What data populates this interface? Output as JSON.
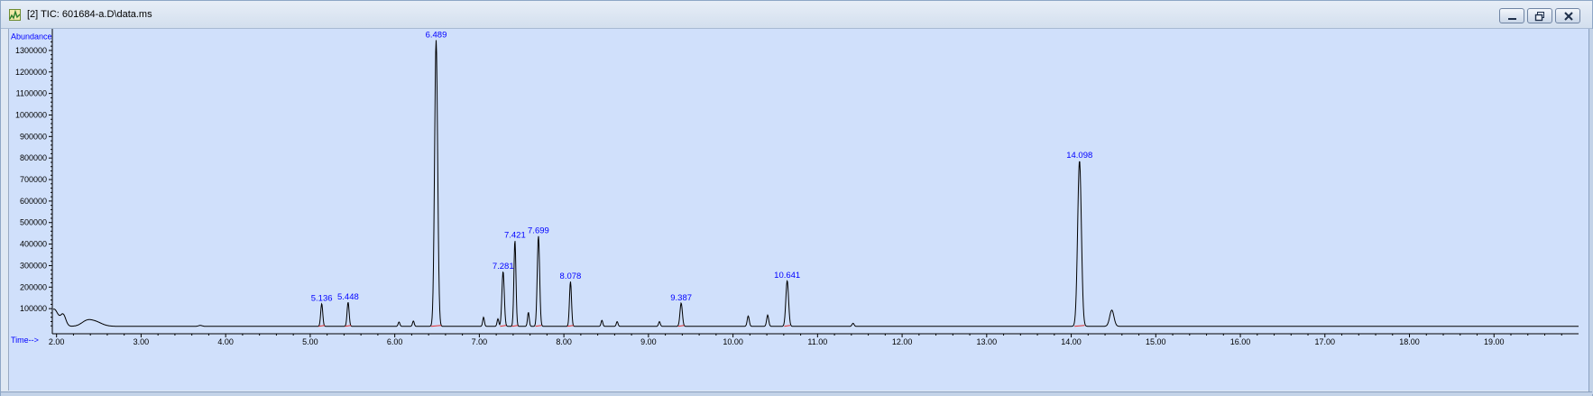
{
  "window": {
    "title": "[2] TIC: 601684-a.D\\data.ms",
    "app_icon": "chromatogram-app-icon",
    "controls": [
      "minimize-icon",
      "restore-icon",
      "close-icon"
    ]
  },
  "colors": {
    "background": "#d0e0fb",
    "trace": "#000000",
    "baseline": "#e03030",
    "label": "#0000ff",
    "axis": "#000000"
  },
  "chart_data": {
    "type": "line",
    "title": "",
    "ylabel": "Abundance",
    "xlabel": "Time-->",
    "xlim": [
      1.95,
      20.0
    ],
    "ylim": [
      0,
      1350000
    ],
    "x_ticks": [
      "2.00",
      "3.00",
      "4.00",
      "5.00",
      "6.00",
      "7.00",
      "8.00",
      "9.00",
      "10.00",
      "11.00",
      "12.00",
      "13.00",
      "14.00",
      "15.00",
      "16.00",
      "17.00",
      "18.00",
      "19.00"
    ],
    "y_ticks": [
      "100000",
      "200000",
      "300000",
      "400000",
      "500000",
      "600000",
      "700000",
      "800000",
      "900000",
      "1000000",
      "1100000",
      "1200000",
      "1300000"
    ],
    "grid": false,
    "baseline_level": 18000,
    "peaks": [
      {
        "rt": 1.97,
        "height": 80000,
        "width": 0.05
      },
      {
        "rt": 2.08,
        "height": 50000,
        "width": 0.03
      },
      {
        "rt": 2.35,
        "height": 18000,
        "width": 0.06
      },
      {
        "rt": 2.45,
        "height": 22000,
        "width": 0.08
      },
      {
        "rt": 3.7,
        "height": 4000,
        "width": 0.02
      },
      {
        "rt": 5.136,
        "height": 105000,
        "width": 0.012
      },
      {
        "rt": 5.448,
        "height": 112000,
        "width": 0.012
      },
      {
        "rt": 6.05,
        "height": 20000,
        "width": 0.01
      },
      {
        "rt": 6.22,
        "height": 25000,
        "width": 0.01
      },
      {
        "rt": 6.489,
        "height": 1330000,
        "width": 0.018
      },
      {
        "rt": 7.05,
        "height": 42000,
        "width": 0.01
      },
      {
        "rt": 7.22,
        "height": 35000,
        "width": 0.01
      },
      {
        "rt": 7.281,
        "height": 255000,
        "width": 0.014
      },
      {
        "rt": 7.421,
        "height": 400000,
        "width": 0.012
      },
      {
        "rt": 7.58,
        "height": 65000,
        "width": 0.01
      },
      {
        "rt": 7.699,
        "height": 420000,
        "width": 0.014
      },
      {
        "rt": 8.078,
        "height": 208000,
        "width": 0.012
      },
      {
        "rt": 8.45,
        "height": 28000,
        "width": 0.01
      },
      {
        "rt": 8.63,
        "height": 22000,
        "width": 0.01
      },
      {
        "rt": 9.13,
        "height": 22000,
        "width": 0.01
      },
      {
        "rt": 9.387,
        "height": 108000,
        "width": 0.014
      },
      {
        "rt": 10.18,
        "height": 48000,
        "width": 0.012
      },
      {
        "rt": 10.41,
        "height": 52000,
        "width": 0.012
      },
      {
        "rt": 10.641,
        "height": 212000,
        "width": 0.016
      },
      {
        "rt": 11.42,
        "height": 14000,
        "width": 0.012
      },
      {
        "rt": 14.098,
        "height": 770000,
        "width": 0.022
      },
      {
        "rt": 14.48,
        "height": 75000,
        "width": 0.025
      }
    ],
    "peak_labels": [
      {
        "rt": 5.136,
        "text": "5.136",
        "height": 105000
      },
      {
        "rt": 5.448,
        "text": "5.448",
        "height": 112000
      },
      {
        "rt": 6.489,
        "text": "6.489",
        "height": 1330000
      },
      {
        "rt": 7.281,
        "text": "7.281",
        "height": 255000
      },
      {
        "rt": 7.421,
        "text": "7.421",
        "height": 400000
      },
      {
        "rt": 7.699,
        "text": "7.699",
        "height": 420000
      },
      {
        "rt": 8.078,
        "text": "8.078",
        "height": 208000
      },
      {
        "rt": 9.387,
        "text": "9.387",
        "height": 108000
      },
      {
        "rt": 10.641,
        "text": "10.641",
        "height": 212000
      },
      {
        "rt": 14.098,
        "text": "14.098",
        "height": 770000
      }
    ]
  }
}
